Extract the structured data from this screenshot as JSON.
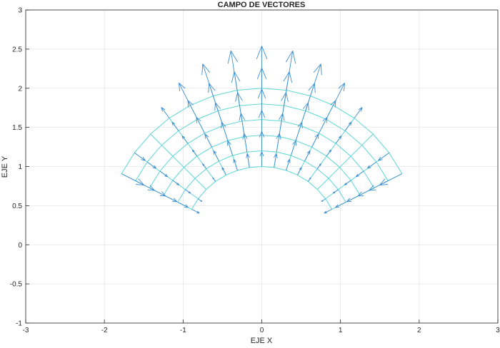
{
  "chart_data": {
    "type": "quiver",
    "title": "CAMPO DE VECTORES",
    "xlabel": "EJE X",
    "ylabel": "EJE Y",
    "xlim": [
      -3,
      3
    ],
    "ylim": [
      -1,
      3
    ],
    "xticks": [
      "-3",
      "-2",
      "-1",
      "0",
      "1",
      "2",
      "3"
    ],
    "yticks": [
      "-1",
      "-0.5",
      "0",
      "0.5",
      "1",
      "1.5",
      "2",
      "2.5",
      "3"
    ],
    "grid": true,
    "mesh": {
      "radii": [
        1,
        1.2,
        1.4,
        1.6,
        1.8,
        2
      ],
      "angles_deg": [
        27,
        36,
        45,
        54,
        63,
        72,
        81,
        90,
        99,
        108,
        117,
        126,
        135,
        144,
        153
      ]
    },
    "radial_component": [
      [
        -0.11,
        -0.06,
        0,
        0.06,
        0.11,
        0.15,
        0.18,
        0.19,
        0.18,
        0.15,
        0.11,
        0.06,
        0,
        -0.06,
        -0.11
      ],
      [
        -0.15,
        -0.08,
        0,
        0.08,
        0.15,
        0.2,
        0.24,
        0.25,
        0.24,
        0.2,
        0.15,
        0.08,
        0,
        -0.08,
        -0.15
      ],
      [
        -0.19,
        -0.1,
        0,
        0.1,
        0.19,
        0.25,
        0.3,
        0.32,
        0.3,
        0.25,
        0.19,
        0.1,
        0,
        -0.1,
        -0.19
      ],
      [
        -0.23,
        -0.12,
        0,
        0.12,
        0.23,
        0.31,
        0.37,
        0.39,
        0.37,
        0.31,
        0.23,
        0.12,
        0,
        -0.12,
        -0.23
      ],
      [
        -0.27,
        -0.14,
        0,
        0.14,
        0.27,
        0.37,
        0.44,
        0.46,
        0.44,
        0.37,
        0.27,
        0.14,
        0,
        -0.14,
        -0.27
      ],
      [
        -0.32,
        -0.17,
        0,
        0.17,
        0.32,
        0.43,
        0.51,
        0.54,
        0.51,
        0.43,
        0.32,
        0.17,
        0,
        -0.17,
        -0.32
      ]
    ],
    "colors": {
      "mesh": "#5ed6d6",
      "arrows": "#3f8fd0",
      "grid": "#e6e6e6",
      "axes": "#262626"
    }
  }
}
